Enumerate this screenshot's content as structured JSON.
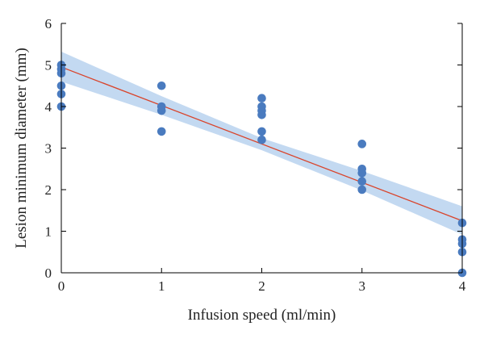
{
  "chart_data": {
    "type": "scatter",
    "title": "",
    "xlabel": "Infusion speed (ml/min)",
    "ylabel": "Lesion minimum diameter (mm)",
    "xlim": [
      0,
      4
    ],
    "ylim": [
      0,
      6
    ],
    "x_ticks": [
      "0",
      "1",
      "2",
      "3",
      "4"
    ],
    "y_ticks": [
      "0",
      "1",
      "2",
      "3",
      "4",
      "5",
      "6"
    ],
    "grid": false,
    "legend": "none",
    "series": [
      {
        "marker_color": "#4a7bbf",
        "points": [
          {
            "x": 0,
            "y": 5.0
          },
          {
            "x": 0,
            "y": 4.9
          },
          {
            "x": 0,
            "y": 4.8
          },
          {
            "x": 0,
            "y": 4.5
          },
          {
            "x": 0,
            "y": 4.3
          },
          {
            "x": 0,
            "y": 4.0
          },
          {
            "x": 1,
            "y": 4.5
          },
          {
            "x": 1,
            "y": 4.0
          },
          {
            "x": 1,
            "y": 3.9
          },
          {
            "x": 1,
            "y": 3.4
          },
          {
            "x": 2,
            "y": 4.2
          },
          {
            "x": 2,
            "y": 4.0
          },
          {
            "x": 2,
            "y": 3.9
          },
          {
            "x": 2,
            "y": 3.8
          },
          {
            "x": 2,
            "y": 3.4
          },
          {
            "x": 2,
            "y": 3.2
          },
          {
            "x": 3,
            "y": 3.1
          },
          {
            "x": 3,
            "y": 2.5
          },
          {
            "x": 3,
            "y": 2.4
          },
          {
            "x": 3,
            "y": 2.2
          },
          {
            "x": 3,
            "y": 2.0
          },
          {
            "x": 4,
            "y": 1.2
          },
          {
            "x": 4,
            "y": 0.8
          },
          {
            "x": 4,
            "y": 0.7
          },
          {
            "x": 4,
            "y": 0.5
          },
          {
            "x": 4,
            "y": 0.0
          }
        ]
      }
    ],
    "fit_line": {
      "x": [
        0,
        4
      ],
      "y": [
        4.95,
        1.25
      ],
      "color": "#d9442b"
    },
    "confidence_band": {
      "x": [
        0,
        1,
        2,
        3,
        4
      ],
      "upper": [
        5.32,
        4.25,
        3.24,
        2.45,
        1.6
      ],
      "lower": [
        4.6,
        3.8,
        2.95,
        1.98,
        0.92
      ],
      "color": "#b9d2ef"
    }
  }
}
